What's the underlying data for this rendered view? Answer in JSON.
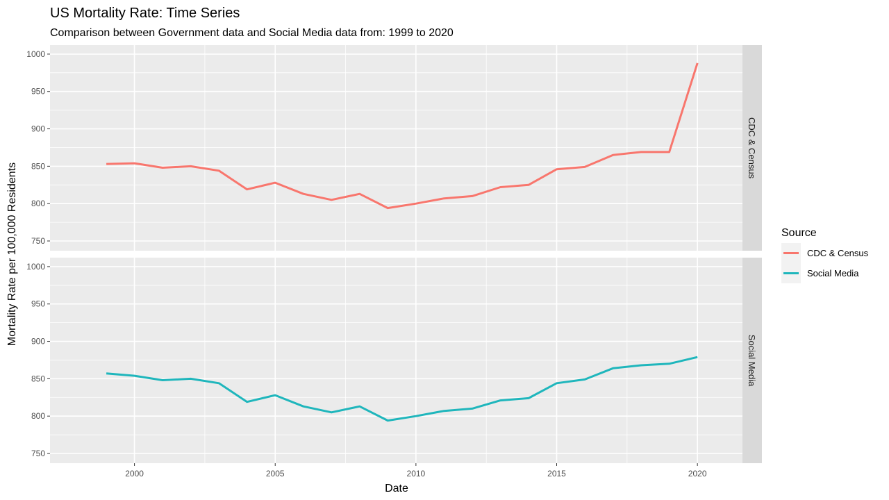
{
  "chart_data": {
    "type": "line",
    "title": "US Mortality Rate: Time Series",
    "subtitle": "Comparison between Government data and Social Media data from: 1999 to 2020",
    "xlabel": "Date",
    "ylabel": "Mortality Rate per 100,000 Residents",
    "x_range": [
      1997.0,
      2021.6
    ],
    "x_ticks": [
      2000,
      2005,
      2010,
      2015,
      2020
    ],
    "ylim": [
      737,
      1012
    ],
    "y_ticks": [
      750,
      800,
      850,
      900,
      950,
      1000
    ],
    "grid": true,
    "facets": [
      "CDC & Census",
      "Social Media"
    ],
    "legend": {
      "title": "Source",
      "placement": "right",
      "entries": [
        "CDC & Census",
        "Social Media"
      ]
    },
    "x": [
      1999,
      2000,
      2001,
      2002,
      2003,
      2004,
      2005,
      2006,
      2007,
      2008,
      2009,
      2010,
      2011,
      2012,
      2013,
      2014,
      2015,
      2016,
      2017,
      2018,
      2019,
      2020
    ],
    "series": [
      {
        "name": "CDC & Census",
        "color": "#F8766D",
        "facet": "CDC & Census",
        "values": [
          853,
          854,
          848,
          850,
          844,
          819,
          828,
          813,
          805,
          813,
          794,
          800,
          807,
          810,
          822,
          825,
          846,
          849,
          865,
          869,
          869,
          988
        ]
      },
      {
        "name": "Social Media",
        "color": "#1FB6BC",
        "facet": "Social Media",
        "values": [
          857,
          854,
          848,
          850,
          844,
          819,
          828,
          813,
          805,
          813,
          794,
          800,
          807,
          810,
          821,
          824,
          844,
          849,
          864,
          868,
          870,
          879
        ]
      }
    ]
  }
}
